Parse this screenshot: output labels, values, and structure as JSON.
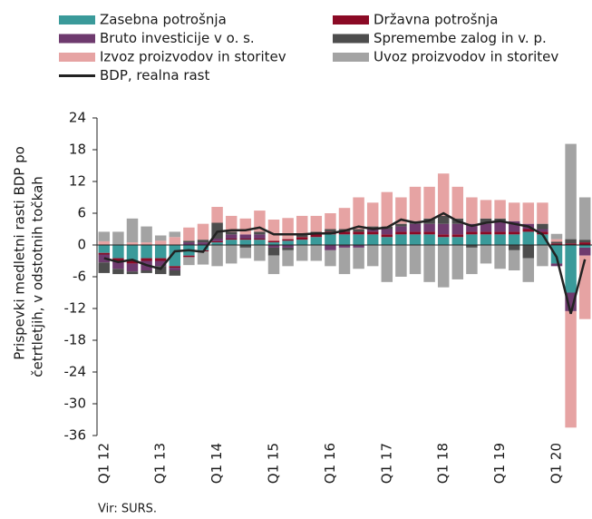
{
  "chart_data": {
    "type": "stacked-bar-line",
    "y_label": [
      "Prispevki medletni rasti BDP po",
      "četrtletjih, v odstotnih točkah"
    ],
    "source": "Vir: SURS.",
    "categories": [
      "Q1 12",
      null,
      null,
      null,
      "Q1 13",
      null,
      null,
      null,
      "Q1 14",
      null,
      null,
      null,
      "Q1 15",
      null,
      null,
      null,
      "Q1 16",
      null,
      null,
      null,
      "Q1 17",
      null,
      null,
      null,
      "Q1 18",
      null,
      null,
      null,
      "Q1 19",
      null,
      null,
      null,
      "Q1 20",
      null,
      null
    ],
    "ylim": [
      -36,
      24
    ],
    "yticks": [
      -36,
      -30,
      -24,
      -18,
      -12,
      -6,
      0,
      6,
      12,
      18,
      24
    ],
    "series": [
      {
        "name": "Zasebna potrošnja",
        "color": "#3a9a9a",
        "values": [
          -1.5,
          -2.5,
          -3,
          -2.5,
          -2.5,
          -4,
          -2,
          -1,
          0.5,
          1,
          1,
          1,
          0.5,
          0.8,
          1,
          1.5,
          2,
          2,
          2,
          2,
          1.5,
          2,
          2,
          2,
          1.5,
          1.5,
          2,
          2,
          2,
          2,
          2.5,
          2,
          -3.5,
          -9,
          -0.5
        ]
      },
      {
        "name": "Državna potrošnja",
        "color": "#8b0a25",
        "values": [
          -0.3,
          -0.5,
          -0.5,
          -0.5,
          -0.5,
          -0.3,
          -0.3,
          -0.2,
          0.2,
          0.2,
          0.2,
          0.2,
          0.3,
          0.3,
          0.5,
          0.5,
          0.5,
          0.5,
          0.5,
          0.5,
          0.5,
          0.5,
          0.5,
          0.5,
          0.5,
          0.5,
          0.5,
          0.5,
          0.5,
          0.5,
          0.5,
          0.5,
          0.3,
          0.3,
          0.5
        ]
      },
      {
        "name": "Bruto investicije v o. s.",
        "color": "#6e3a6e",
        "values": [
          -1.5,
          -1.5,
          -1.5,
          -1.8,
          -1,
          -0.5,
          0.5,
          0.5,
          0.5,
          0.8,
          0.8,
          0.8,
          -0.5,
          -0.5,
          0,
          0,
          -1,
          -0.5,
          -0.5,
          0.5,
          1,
          1,
          1.5,
          1.5,
          2,
          2,
          1.5,
          1.5,
          2,
          2,
          1,
          0.5,
          -0.5,
          -3.5,
          -1.5
        ]
      },
      {
        "name": "Spremembe zalog in v. p.",
        "color": "#4d4d4d",
        "values": [
          -2,
          -1,
          -0.5,
          -0.5,
          -1.5,
          -1,
          0.3,
          0.5,
          3,
          0.5,
          -0.5,
          0.5,
          -1.5,
          -0.5,
          0.5,
          0.5,
          0.5,
          0.5,
          0.5,
          0.5,
          0.5,
          0.5,
          0.5,
          1,
          1.5,
          1,
          -0.5,
          1,
          0.5,
          -1,
          -2.5,
          1,
          0.3,
          0.8,
          0.5
        ]
      },
      {
        "name": "Izvoz proizvodov in storitev",
        "color": "#e6a3a3",
        "values": [
          0.7,
          0,
          0.5,
          0.5,
          0.8,
          1.5,
          2.5,
          3,
          3,
          3,
          3,
          4,
          4,
          4,
          3.5,
          3,
          3,
          4,
          6,
          4.5,
          6.5,
          5,
          6.5,
          6,
          8,
          6,
          5,
          3.5,
          3.5,
          3.5,
          4,
          4,
          0.5,
          -22,
          -12
        ]
      },
      {
        "name": "Uvoz proizvodov in storitev",
        "color": "#a3a3a3",
        "values": [
          1.8,
          2.5,
          4.5,
          3,
          1,
          1,
          -1.5,
          -2.5,
          -4,
          -3.5,
          -2,
          -3,
          -3.5,
          -3,
          -3,
          -3,
          -3,
          -5,
          -4,
          -4,
          -7,
          -6,
          -5.5,
          -7,
          -8,
          -6.5,
          -5,
          -3.5,
          -4.5,
          -3.8,
          -4.5,
          -4,
          1,
          18,
          8
        ]
      }
    ],
    "line": {
      "name": "BDP, realna rast",
      "color": "#222222",
      "values": [
        -2.5,
        -3.2,
        -2.8,
        -3.8,
        -4.5,
        -1.2,
        -1.0,
        -1.3,
        2.5,
        2.8,
        2.8,
        3.3,
        2.0,
        2.0,
        2.0,
        2.2,
        2.2,
        2.7,
        3.5,
        3.0,
        3.3,
        4.8,
        4.2,
        4.6,
        6.0,
        4.5,
        3.6,
        4.2,
        4.5,
        4.0,
        3.5,
        2.0,
        -2.3,
        -13,
        -2.7
      ]
    }
  }
}
